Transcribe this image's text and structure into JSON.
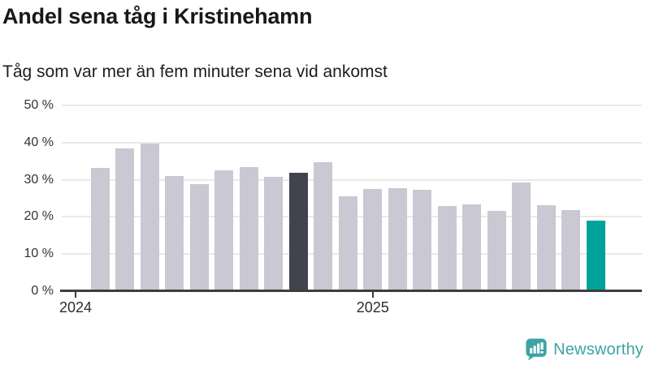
{
  "header": {
    "title": "Andel sena tåg i Kristinehamn",
    "subtitle": "Tåg som var mer än fem minuter sena vid ankomst"
  },
  "chart_data": {
    "type": "bar",
    "title": "Andel sena tåg i Kristinehamn",
    "subtitle": "Tåg som var mer än fem minuter sena vid ankomst",
    "unit": "%",
    "categories": [
      "2024-02",
      "2024-03",
      "2024-04",
      "2024-05",
      "2024-06",
      "2024-07",
      "2024-08",
      "2024-09",
      "2024-10",
      "2024-11",
      "2024-12",
      "2025-01",
      "2025-02",
      "2025-03",
      "2025-04",
      "2025-05",
      "2025-06",
      "2025-07",
      "2025-08",
      "2025-09",
      "2025-10"
    ],
    "values": [
      33.3,
      38.4,
      39.8,
      31.0,
      28.8,
      32.5,
      33.4,
      30.8,
      31.8,
      34.7,
      25.5,
      27.5,
      27.7,
      27.3,
      22.9,
      23.3,
      21.6,
      29.3,
      23.1,
      21.8,
      18.9
    ],
    "highlight": {
      "dark_bar_index": 8,
      "dark_bar_category": "2024-10",
      "current_bar_index": 20,
      "current_bar_category": "2025-10"
    },
    "ylim": [
      0,
      50
    ],
    "ytick_values": [
      0,
      10,
      20,
      30,
      40,
      50
    ],
    "ytick_labels": [
      "0 %",
      "10 %",
      "20 %",
      "30 %",
      "40 %",
      "50 %"
    ],
    "xticks": [
      {
        "label": "2024",
        "bar_offset": -1
      },
      {
        "label": "2025",
        "bar_offset": 11
      }
    ],
    "colors": {
      "base": "#c9c8d3",
      "dark": "#434350",
      "current": "#00a39a",
      "gridline": "#e9e9e9",
      "axis": "#3d3d3d"
    },
    "grid": "horizontal",
    "legend": "none"
  },
  "footer": {
    "logo_text": "Newsworthy",
    "logo_color": "#3ea4a3"
  }
}
